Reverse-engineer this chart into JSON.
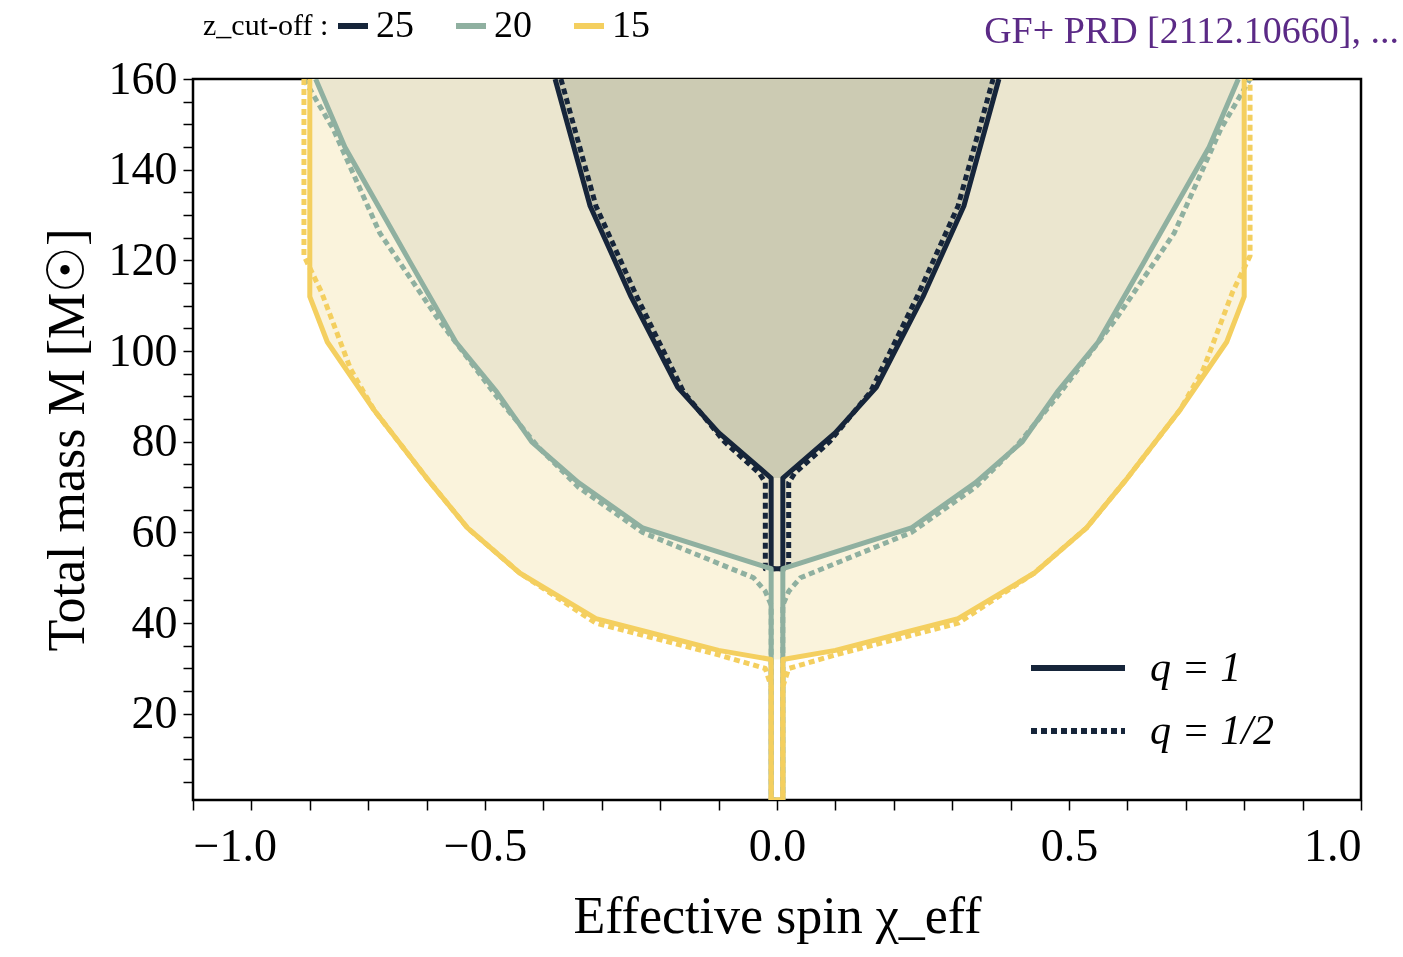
{
  "chart_data": {
    "type": "line",
    "xlabel": "Effective spin χ_eff",
    "ylabel": "Total mass M [M☉]",
    "legend_title": "z_cut-off :",
    "legend": "top",
    "xlim": [
      -1,
      1
    ],
    "ylim": [
      1,
      160
    ],
    "xticks": [
      {
        "value": -1,
        "label": "−1.0"
      },
      {
        "value": -0.9,
        "label": null
      },
      {
        "value": -0.8,
        "label": null
      },
      {
        "value": -0.7,
        "label": null
      },
      {
        "value": -0.6,
        "label": null
      },
      {
        "value": -0.5,
        "label": "−0.5"
      },
      {
        "value": -0.4,
        "label": null
      },
      {
        "value": -0.3,
        "label": null
      },
      {
        "value": -0.2,
        "label": null
      },
      {
        "value": -0.1,
        "label": null
      },
      {
        "value": 0,
        "label": "0.0"
      },
      {
        "value": 0.1,
        "label": null
      },
      {
        "value": 0.2,
        "label": null
      },
      {
        "value": 0.3,
        "label": null
      },
      {
        "value": 0.4,
        "label": null
      },
      {
        "value": 0.5,
        "label": "0.5"
      },
      {
        "value": 0.6,
        "label": null
      },
      {
        "value": 0.7,
        "label": null
      },
      {
        "value": 0.8,
        "label": null
      },
      {
        "value": 0.9,
        "label": null
      },
      {
        "value": 1,
        "label": "1.0"
      }
    ],
    "yticks": [
      {
        "value": 5,
        "label": null
      },
      {
        "value": 10,
        "label": null
      },
      {
        "value": 15,
        "label": null
      },
      20,
      {
        "value": 25,
        "label": null
      },
      {
        "value": 30,
        "label": null
      },
      {
        "value": 35,
        "label": null
      },
      40,
      {
        "value": 45,
        "label": null
      },
      {
        "value": 50,
        "label": null
      },
      {
        "value": 55,
        "label": null
      },
      60,
      {
        "value": 65,
        "label": null
      },
      {
        "value": 70,
        "label": null
      },
      {
        "value": 75,
        "label": null
      },
      80,
      {
        "value": 85,
        "label": null
      },
      {
        "value": 90,
        "label": null
      },
      {
        "value": 95,
        "label": null
      },
      100,
      {
        "value": 105,
        "label": null
      },
      {
        "value": 110,
        "label": null
      },
      {
        "value": 115,
        "label": null
      },
      120,
      {
        "value": 125,
        "label": null
      },
      {
        "value": 130,
        "label": null
      },
      {
        "value": 135,
        "label": null
      },
      140,
      {
        "value": 145,
        "label": null
      },
      {
        "value": 150,
        "label": null
      },
      {
        "value": 155,
        "label": null
      },
      160
    ],
    "annotations": [
      "q = 1",
      "q = 1/2",
      "GF+ PRD [2112.10660], ..."
    ],
    "series": [
      {
        "type": "area",
        "color": "#faf3dc",
        "x": [
          -0.8,
          -0.8,
          -0.77,
          -0.69,
          -0.6,
          -0.53,
          -0.44,
          -0.31,
          -0.22,
          -0.1,
          -0.01,
          0.01,
          0.1,
          0.22,
          0.31,
          0.44,
          0.53,
          0.6,
          0.69,
          0.77,
          0.8,
          0.8
        ],
        "values": [
          160,
          112,
          102,
          87,
          72,
          61,
          51,
          41,
          38,
          34,
          32,
          32,
          34,
          38,
          41,
          51,
          61,
          72,
          87,
          102,
          112,
          160
        ]
      },
      {
        "type": "area",
        "color": "#ebe6cf",
        "x": [
          -0.79,
          -0.74,
          -0.63,
          -0.55,
          -0.48,
          -0.42,
          -0.34,
          -0.23,
          -0.01,
          0.01,
          0.23,
          0.34,
          0.42,
          0.48,
          0.55,
          0.63,
          0.74,
          0.79
        ],
        "values": [
          160,
          145,
          120,
          102,
          91,
          80,
          71,
          61,
          52,
          52,
          61,
          71,
          80,
          91,
          102,
          120,
          145,
          160
        ]
      },
      {
        "type": "area",
        "color": "#cccbb3",
        "x": [
          -0.38,
          -0.32,
          -0.25,
          -0.17,
          -0.1,
          -0.01,
          0.01,
          0.1,
          0.17,
          0.25,
          0.32,
          0.38
        ],
        "values": [
          160,
          132,
          112,
          92,
          82,
          72,
          72,
          82,
          92,
          112,
          132,
          160
        ]
      },
      {
        "name": "25",
        "color": "#16253a",
        "line_style": "solid",
        "x": [
          -0.38,
          -0.32,
          -0.25,
          -0.17,
          -0.1,
          -0.01,
          -0.01,
          0.01,
          0.01,
          0.1,
          0.17,
          0.25,
          0.32,
          0.38
        ],
        "values": [
          160,
          132,
          112,
          92,
          82,
          72,
          52,
          52,
          72,
          82,
          92,
          112,
          132,
          160
        ]
      },
      {
        "color": "#16253a",
        "line_style": "dotted",
        "x": [
          -0.37,
          -0.31,
          -0.24,
          -0.16,
          -0.09,
          -0.03,
          -0.02,
          -0.02,
          0.02,
          0.02,
          0.03,
          0.09,
          0.16,
          0.24,
          0.31,
          0.37
        ],
        "values": [
          160,
          132,
          112,
          91,
          80,
          73,
          71,
          52,
          52,
          71,
          73,
          80,
          91,
          112,
          132,
          160
        ]
      },
      {
        "name": "20",
        "color": "#8fb0a0",
        "line_style": "solid",
        "x": [
          -0.79,
          -0.74,
          -0.63,
          -0.55,
          -0.48,
          -0.42,
          -0.34,
          -0.23,
          -0.01,
          -0.01,
          0.01,
          0.01,
          0.23,
          0.34,
          0.42,
          0.48,
          0.55,
          0.63,
          0.74,
          0.79
        ],
        "values": [
          160,
          145,
          120,
          102,
          91,
          80,
          71,
          61,
          52,
          1,
          1,
          52,
          61,
          71,
          80,
          91,
          102,
          120,
          145,
          160
        ]
      },
      {
        "color": "#8fb0a0",
        "line_style": "dotted",
        "x": [
          -0.81,
          -0.76,
          -0.68,
          -0.58,
          -0.48,
          -0.41,
          -0.34,
          -0.23,
          -0.04,
          -0.02,
          -0.01,
          -0.01,
          0.01,
          0.01,
          0.02,
          0.04,
          0.23,
          0.34,
          0.41,
          0.48,
          0.58,
          0.68,
          0.76,
          0.81
        ],
        "values": [
          160,
          149,
          126,
          107,
          90,
          79,
          70,
          60,
          50,
          47,
          44,
          1,
          1,
          44,
          47,
          50,
          60,
          70,
          79,
          90,
          107,
          126,
          149,
          160
        ]
      },
      {
        "name": "15",
        "color": "#f4cf5f",
        "line_style": "solid",
        "x": [
          -0.8,
          -0.8,
          -0.77,
          -0.69,
          -0.6,
          -0.53,
          -0.44,
          -0.31,
          -0.22,
          -0.1,
          -0.01,
          -0.01,
          0.01,
          0.01,
          0.1,
          0.22,
          0.31,
          0.44,
          0.53,
          0.6,
          0.69,
          0.77,
          0.8,
          0.8
        ],
        "values": [
          160,
          112,
          102,
          87,
          72,
          61,
          51,
          41,
          38,
          34,
          32,
          1,
          1,
          32,
          34,
          38,
          41,
          51,
          61,
          72,
          87,
          102,
          112,
          160
        ]
      },
      {
        "color": "#f4cf5f",
        "line_style": "dotted",
        "x": [
          -0.81,
          -0.81,
          -0.78,
          -0.73,
          -0.69,
          -0.6,
          -0.53,
          -0.44,
          -0.31,
          -0.22,
          -0.1,
          -0.02,
          -0.01,
          -0.01,
          0.01,
          0.01,
          0.02,
          0.1,
          0.22,
          0.31,
          0.44,
          0.53,
          0.6,
          0.69,
          0.73,
          0.78,
          0.81,
          0.81
        ],
        "values": [
          160,
          121,
          113,
          96,
          87,
          72,
          61,
          51,
          40,
          37,
          33,
          30,
          26,
          1,
          1,
          26,
          30,
          33,
          37,
          40,
          51,
          61,
          72,
          87,
          96,
          113,
          121,
          160
        ]
      }
    ]
  }
}
